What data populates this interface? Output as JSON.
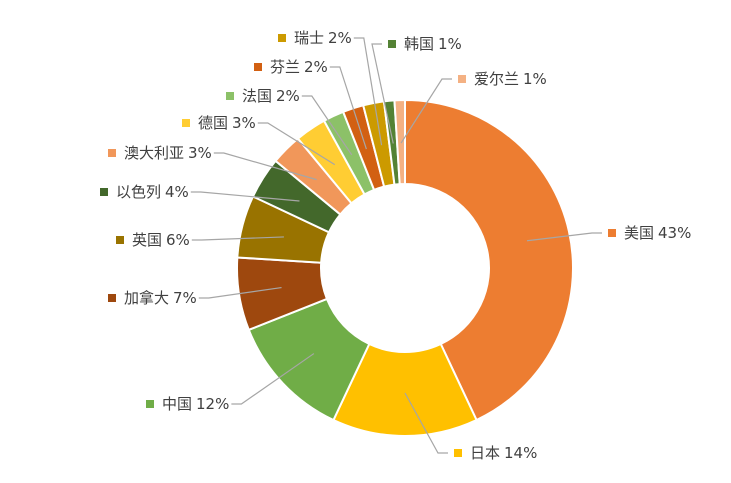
{
  "chart_data": {
    "type": "donut",
    "categories": [
      "美国",
      "日本",
      "中国",
      "加拿大",
      "英国",
      "以色列",
      "澳大利亚",
      "德国",
      "法国",
      "芬兰",
      "瑞士",
      "韩国",
      "爱尔兰"
    ],
    "values": [
      43,
      14,
      12,
      7,
      6,
      4,
      3,
      3,
      2,
      2,
      2,
      1,
      1
    ],
    "value_labels": [
      "43%",
      "14%",
      "12%",
      "7%",
      "6%",
      "4%",
      "3%",
      "3%",
      "2%",
      "2%",
      "2%",
      "1%",
      "1%"
    ],
    "colors": [
      "#ED7D31",
      "#FFC000",
      "#70AD47",
      "#9E480E",
      "#997300",
      "#43682B",
      "#F1975A",
      "#FFCD33",
      "#8CC168",
      "#D26012",
      "#CC9A00",
      "#548235",
      "#F4B183"
    ]
  }
}
